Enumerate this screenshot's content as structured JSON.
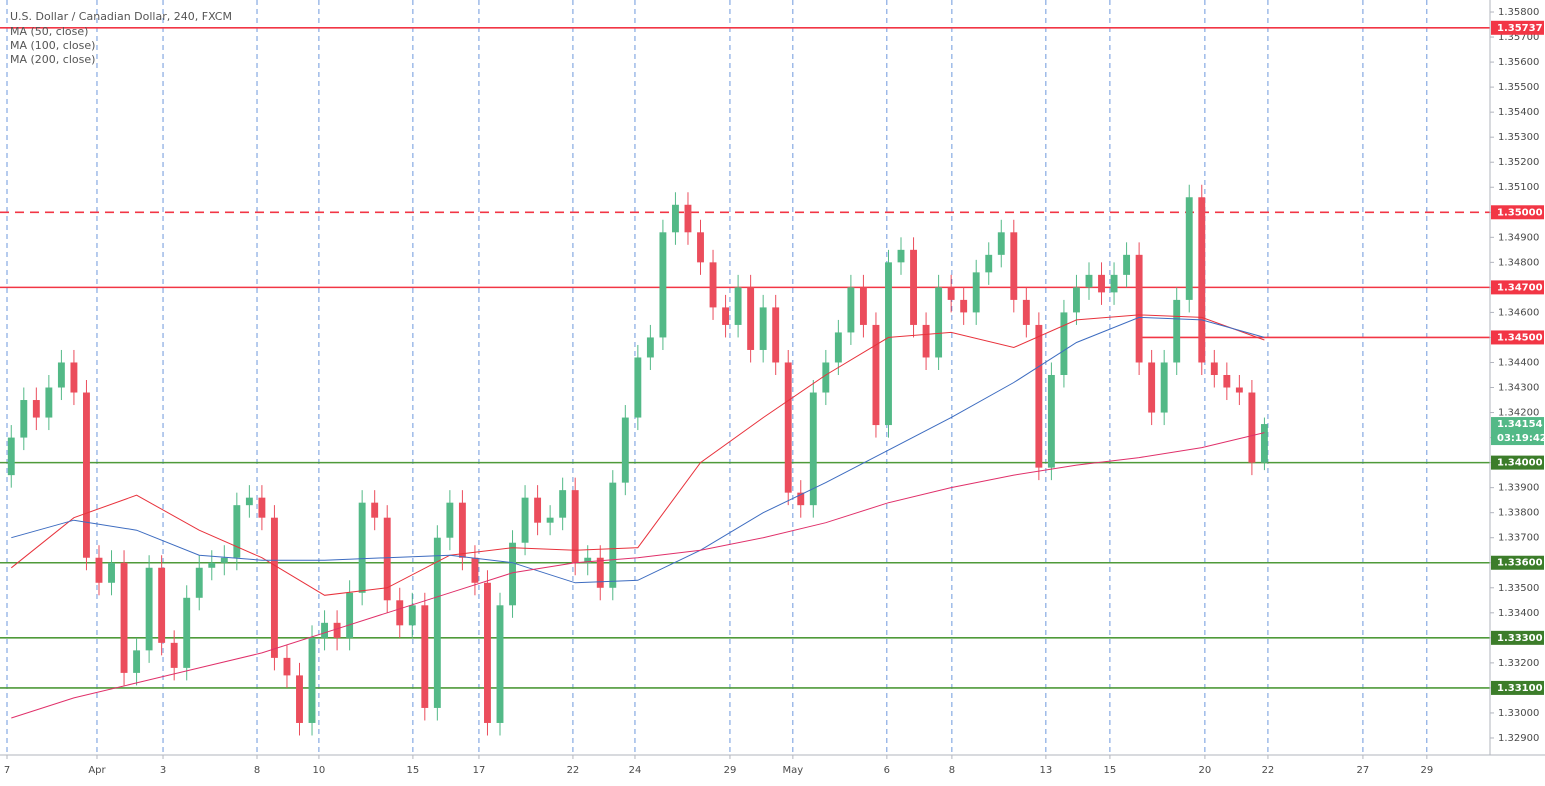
{
  "chart_data": {
    "type": "candlestick",
    "title": "U.S. Dollar / Canadian Dollar, 240, FXCM",
    "up_color": "#53b987",
    "down_color": "#eb4d5c",
    "grid": true,
    "xlim": [
      -0.5,
      118
    ],
    "ylim": [
      1.32832,
      1.35848
    ],
    "xticks": [
      {
        "value": -0.34,
        "label": "7"
      },
      {
        "value": 6.84,
        "label": "Apr"
      },
      {
        "value": 12.11,
        "label": "3"
      },
      {
        "value": 19.61,
        "label": "8"
      },
      {
        "value": 24.55,
        "label": "10"
      },
      {
        "value": 32.05,
        "label": "15"
      },
      {
        "value": 37.32,
        "label": "17"
      },
      {
        "value": 44.82,
        "label": "22"
      },
      {
        "value": 49.77,
        "label": "24"
      },
      {
        "value": 57.35,
        "label": "29"
      },
      {
        "value": 62.37,
        "label": "May"
      },
      {
        "value": 69.87,
        "label": "6"
      },
      {
        "value": 75.06,
        "label": "8"
      },
      {
        "value": 82.56,
        "label": "13"
      },
      {
        "value": 87.67,
        "label": "15"
      },
      {
        "value": 95.25,
        "label": "20"
      },
      {
        "value": 100.28,
        "label": "22"
      },
      {
        "value": 107.86,
        "label": "27"
      },
      {
        "value": 112.96,
        "label": "29"
      }
    ],
    "yticks": [
      {
        "value": 1.329,
        "label": "1.32900"
      },
      {
        "value": 1.33,
        "label": "1.33000"
      },
      {
        "value": 1.331,
        "label": "1.33100"
      },
      {
        "value": 1.332,
        "label": "1.33200"
      },
      {
        "value": 1.333,
        "label": "1.33300"
      },
      {
        "value": 1.334,
        "label": "1.33400"
      },
      {
        "value": 1.335,
        "label": "1.33500"
      },
      {
        "value": 1.336,
        "label": "1.33600"
      },
      {
        "value": 1.337,
        "label": "1.33700"
      },
      {
        "value": 1.338,
        "label": "1.33800"
      },
      {
        "value": 1.339,
        "label": "1.33900"
      },
      {
        "value": 1.34,
        "label": "1.34000"
      },
      {
        "value": 1.341,
        "label": "1.34100"
      },
      {
        "value": 1.342,
        "label": "1.34200"
      },
      {
        "value": 1.343,
        "label": "1.34300"
      },
      {
        "value": 1.344,
        "label": "1.34400"
      },
      {
        "value": 1.345,
        "label": "1.34500"
      },
      {
        "value": 1.346,
        "label": "1.34600"
      },
      {
        "value": 1.347,
        "label": "1.34700"
      },
      {
        "value": 1.348,
        "label": "1.34800"
      },
      {
        "value": 1.349,
        "label": "1.34900"
      },
      {
        "value": 1.35,
        "label": "1.35000"
      },
      {
        "value": 1.351,
        "label": "1.35100"
      },
      {
        "value": 1.352,
        "label": "1.35200"
      },
      {
        "value": 1.353,
        "label": "1.35300"
      },
      {
        "value": 1.354,
        "label": "1.35400"
      },
      {
        "value": 1.355,
        "label": "1.35500"
      },
      {
        "value": 1.356,
        "label": "1.35600"
      },
      {
        "value": 1.357,
        "label": "1.35700"
      },
      {
        "value": 1.358,
        "label": "1.35800"
      }
    ],
    "candles": {
      "x": [
        0,
        1,
        2,
        3,
        4,
        5,
        6,
        7,
        8,
        9,
        10,
        11,
        12,
        13,
        14,
        15,
        16,
        17,
        18,
        19,
        20,
        21,
        22,
        23,
        24,
        25,
        26,
        27,
        28,
        29,
        30,
        31,
        32,
        33,
        34,
        35,
        36,
        37,
        38,
        39,
        40,
        41,
        42,
        43,
        44,
        45,
        46,
        47,
        48,
        49,
        50,
        51,
        52,
        53,
        54,
        55,
        56,
        57,
        58,
        59,
        60,
        61,
        62,
        63,
        64,
        65,
        66,
        67,
        68,
        69,
        70,
        71,
        72,
        73,
        74,
        75,
        76,
        77,
        78,
        79,
        80,
        81,
        82,
        83,
        84,
        85,
        86,
        87,
        88,
        89,
        90,
        91,
        92,
        93,
        94,
        95,
        96,
        97,
        98,
        99,
        100
      ],
      "open": [
        1.3395,
        1.341,
        1.3425,
        1.3418,
        1.343,
        1.344,
        1.3428,
        1.3362,
        1.3352,
        1.336,
        1.3316,
        1.3325,
        1.3358,
        1.3328,
        1.3318,
        1.3346,
        1.3358,
        1.336,
        1.3362,
        1.3383,
        1.3386,
        1.3378,
        1.3322,
        1.3315,
        1.3296,
        1.333,
        1.3336,
        1.333,
        1.3348,
        1.3384,
        1.3378,
        1.3345,
        1.3335,
        1.3343,
        1.3302,
        1.337,
        1.3384,
        1.3362,
        1.3352,
        1.3296,
        1.3343,
        1.3368,
        1.3386,
        1.3376,
        1.3378,
        1.3389,
        1.336,
        1.3362,
        1.335,
        1.3392,
        1.3418,
        1.3442,
        1.345,
        1.3492,
        1.3503,
        1.3492,
        1.348,
        1.3462,
        1.3455,
        1.347,
        1.3445,
        1.3462,
        1.344,
        1.3388,
        1.3383,
        1.3428,
        1.344,
        1.3452,
        1.347,
        1.3455,
        1.3415,
        1.348,
        1.3485,
        1.3455,
        1.3442,
        1.347,
        1.3465,
        1.346,
        1.3476,
        1.3483,
        1.3492,
        1.3465,
        1.3455,
        1.3398,
        1.3435,
        1.346,
        1.347,
        1.3475,
        1.3468,
        1.3475,
        1.3483,
        1.344,
        1.342,
        1.344,
        1.3465,
        1.3506,
        1.344,
        1.3435,
        1.343,
        1.3428,
        1.34
      ],
      "high": [
        1.3415,
        1.343,
        1.343,
        1.3435,
        1.3445,
        1.3445,
        1.3433,
        1.3367,
        1.3365,
        1.3365,
        1.333,
        1.3363,
        1.3363,
        1.3333,
        1.3351,
        1.3363,
        1.3365,
        1.3367,
        1.3388,
        1.3391,
        1.3391,
        1.3383,
        1.3327,
        1.332,
        1.3335,
        1.3341,
        1.3341,
        1.3353,
        1.3389,
        1.3389,
        1.3383,
        1.335,
        1.3348,
        1.3348,
        1.3375,
        1.3389,
        1.3389,
        1.3367,
        1.3357,
        1.3348,
        1.3373,
        1.3391,
        1.3391,
        1.3383,
        1.3394,
        1.3394,
        1.3367,
        1.3367,
        1.3397,
        1.3423,
        1.3447,
        1.3455,
        1.3497,
        1.3508,
        1.3508,
        1.3497,
        1.3485,
        1.3467,
        1.3475,
        1.3475,
        1.3467,
        1.3467,
        1.3445,
        1.3393,
        1.3433,
        1.3445,
        1.3457,
        1.3475,
        1.3475,
        1.346,
        1.3485,
        1.349,
        1.349,
        1.346,
        1.3475,
        1.3475,
        1.347,
        1.3481,
        1.3488,
        1.3497,
        1.3497,
        1.347,
        1.346,
        1.344,
        1.3465,
        1.3475,
        1.348,
        1.348,
        1.348,
        1.3488,
        1.3488,
        1.3445,
        1.3445,
        1.347,
        1.3511,
        1.3511,
        1.3445,
        1.344,
        1.3435,
        1.3433,
        1.3418
      ],
      "low": [
        1.339,
        1.3405,
        1.3413,
        1.3413,
        1.3425,
        1.3423,
        1.3357,
        1.3347,
        1.3347,
        1.3311,
        1.3311,
        1.332,
        1.3323,
        1.3313,
        1.3313,
        1.3341,
        1.3353,
        1.3355,
        1.3357,
        1.3378,
        1.3373,
        1.3317,
        1.331,
        1.3291,
        1.3291,
        1.3325,
        1.3325,
        1.3325,
        1.3343,
        1.3373,
        1.334,
        1.333,
        1.333,
        1.3297,
        1.3297,
        1.3365,
        1.3357,
        1.3347,
        1.3291,
        1.3291,
        1.3338,
        1.3363,
        1.3371,
        1.3371,
        1.3373,
        1.3355,
        1.3355,
        1.3345,
        1.3345,
        1.3387,
        1.3413,
        1.3437,
        1.3445,
        1.3487,
        1.3487,
        1.3475,
        1.3457,
        1.345,
        1.345,
        1.344,
        1.344,
        1.3435,
        1.3383,
        1.3378,
        1.3378,
        1.3423,
        1.3435,
        1.3447,
        1.345,
        1.341,
        1.341,
        1.3475,
        1.345,
        1.3437,
        1.3437,
        1.346,
        1.3455,
        1.3455,
        1.3471,
        1.3478,
        1.346,
        1.345,
        1.3393,
        1.3393,
        1.343,
        1.3455,
        1.3465,
        1.3463,
        1.3463,
        1.347,
        1.3435,
        1.3415,
        1.3415,
        1.3435,
        1.346,
        1.3435,
        1.343,
        1.3425,
        1.3423,
        1.3395,
        1.3397
      ],
      "close": [
        1.341,
        1.3425,
        1.3418,
        1.343,
        1.344,
        1.3428,
        1.3362,
        1.3352,
        1.336,
        1.3316,
        1.3325,
        1.3358,
        1.3328,
        1.3318,
        1.3346,
        1.3358,
        1.336,
        1.3362,
        1.3383,
        1.3386,
        1.3378,
        1.3322,
        1.3315,
        1.3296,
        1.333,
        1.3336,
        1.333,
        1.3348,
        1.3384,
        1.3378,
        1.3345,
        1.3335,
        1.3343,
        1.3302,
        1.337,
        1.3384,
        1.3362,
        1.3352,
        1.3296,
        1.3343,
        1.3368,
        1.3386,
        1.3376,
        1.3378,
        1.3389,
        1.336,
        1.3362,
        1.335,
        1.3392,
        1.3418,
        1.3442,
        1.345,
        1.3492,
        1.3503,
        1.3492,
        1.348,
        1.3462,
        1.3455,
        1.347,
        1.3445,
        1.3462,
        1.344,
        1.3388,
        1.3383,
        1.3428,
        1.344,
        1.3452,
        1.347,
        1.3455,
        1.3415,
        1.348,
        1.3485,
        1.3455,
        1.3442,
        1.347,
        1.3465,
        1.346,
        1.3476,
        1.3483,
        1.3492,
        1.3465,
        1.3455,
        1.3398,
        1.3435,
        1.346,
        1.347,
        1.3475,
        1.3468,
        1.3475,
        1.3483,
        1.344,
        1.342,
        1.344,
        1.3465,
        1.3506,
        1.344,
        1.3435,
        1.343,
        1.3428,
        1.34,
        1.34154
      ]
    },
    "series": [
      {
        "name": "MA (50, close)",
        "color": "#e8323c",
        "x": [
          0,
          5,
          10,
          15,
          20,
          25,
          30,
          35,
          40,
          45,
          50,
          55,
          60,
          65,
          70,
          75,
          80,
          85,
          90,
          95,
          100
        ],
        "values": [
          1.3358,
          1.3378,
          1.3387,
          1.3373,
          1.3362,
          1.3347,
          1.335,
          1.3363,
          1.3366,
          1.3365,
          1.3366,
          1.34,
          1.3418,
          1.3435,
          1.345,
          1.3452,
          1.3446,
          1.3457,
          1.3459,
          1.3458,
          1.3449
        ]
      },
      {
        "name": "MA (100, close)",
        "color": "#3d6cc0",
        "x": [
          0,
          5,
          10,
          15,
          20,
          25,
          30,
          35,
          40,
          45,
          50,
          55,
          60,
          65,
          70,
          75,
          80,
          85,
          90,
          95,
          100
        ],
        "values": [
          1.337,
          1.3377,
          1.3373,
          1.3363,
          1.3361,
          1.3361,
          1.3362,
          1.3363,
          1.336,
          1.3352,
          1.3353,
          1.3365,
          1.338,
          1.3392,
          1.3405,
          1.3418,
          1.3432,
          1.3448,
          1.3458,
          1.3457,
          1.345
        ]
      },
      {
        "name": "MA (200, close)",
        "color": "#e0306a",
        "x": [
          0,
          5,
          10,
          15,
          20,
          25,
          30,
          35,
          40,
          45,
          50,
          55,
          60,
          65,
          70,
          75,
          80,
          85,
          90,
          95,
          100
        ],
        "values": [
          1.3298,
          1.3306,
          1.3312,
          1.3318,
          1.3324,
          1.3332,
          1.334,
          1.3348,
          1.3356,
          1.336,
          1.3362,
          1.3365,
          1.337,
          1.3376,
          1.3384,
          1.339,
          1.3395,
          1.3399,
          1.3402,
          1.3406,
          1.3412
        ]
      }
    ],
    "levels": [
      {
        "value": 1.35737,
        "label": "1.35737",
        "color": "#f23645",
        "style": "solid"
      },
      {
        "value": 1.35,
        "label": "1.35000",
        "color": "#f23645",
        "style": "dashed"
      },
      {
        "value": 1.347,
        "label": "1.34700",
        "color": "#f23645",
        "style": "solid"
      },
      {
        "value": 1.345,
        "label": "1.34500",
        "color": "#f23645",
        "style": "solid",
        "x_start": 89.8
      },
      {
        "value": 1.34,
        "label": "1.34000",
        "color": "#4f9a3a",
        "style": "solid"
      },
      {
        "value": 1.336,
        "label": "1.33600",
        "color": "#4f9a3a",
        "style": "solid"
      },
      {
        "value": 1.333,
        "label": "1.33300",
        "color": "#4f9a3a",
        "style": "solid"
      },
      {
        "value": 1.331,
        "label": "1.33100",
        "color": "#4f9a3a",
        "style": "solid"
      }
    ],
    "last_price": {
      "value": 1.34154,
      "label": "1.34154",
      "countdown": "03:19:42",
      "color": "#53b987"
    }
  }
}
